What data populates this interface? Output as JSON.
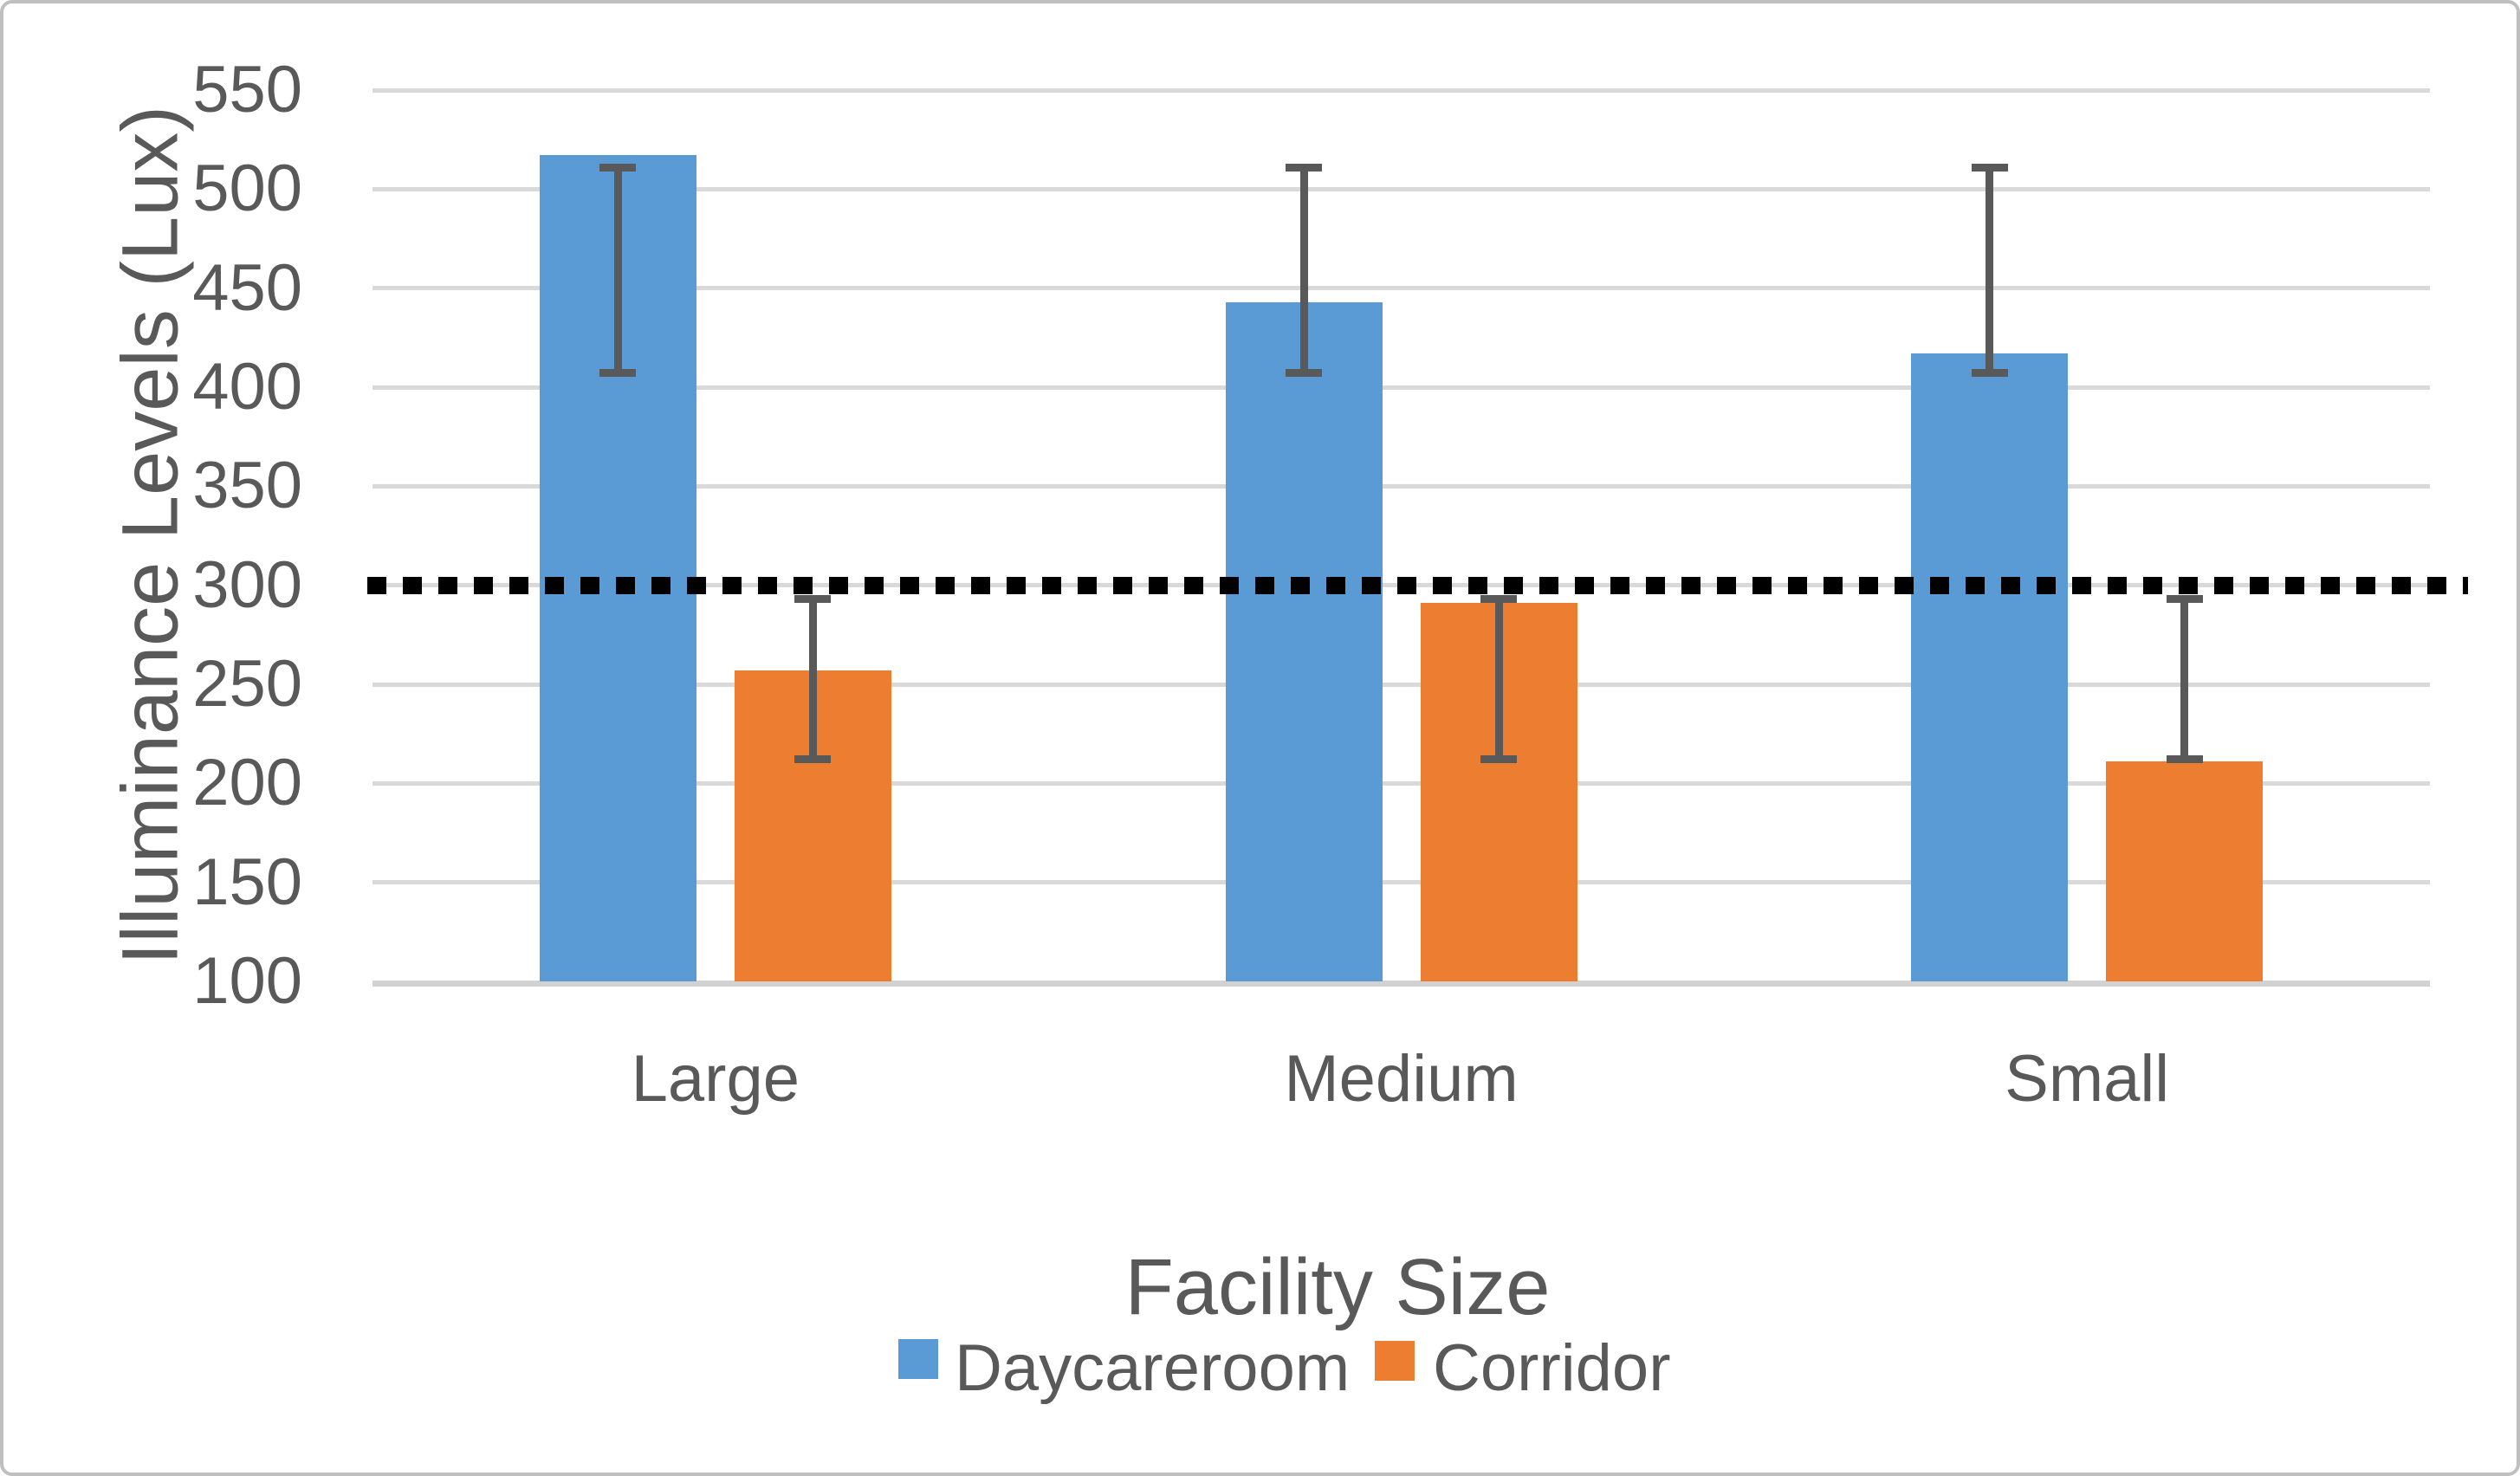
{
  "chart_data": {
    "type": "bar",
    "title": "",
    "xlabel": "Facility Size",
    "ylabel": "Illuminance Levels (Lux)",
    "categories": [
      "Large",
      "Medium",
      "Small"
    ],
    "series": [
      {
        "name": "Daycareroom",
        "color": "#5B9BD5",
        "values": [
          517,
          443,
          417
        ],
        "error_low": [
          407,
          407,
          407
        ],
        "error_high": [
          511,
          511,
          511
        ]
      },
      {
        "name": "Corridor",
        "color": "#ED7D31",
        "values": [
          257,
          291,
          211
        ],
        "error_low": [
          212,
          212,
          212
        ],
        "error_high": [
          293,
          293,
          293
        ]
      }
    ],
    "y_ticks": [
      550,
      500,
      450,
      400,
      350,
      300,
      250,
      200,
      150,
      100
    ],
    "ylim": [
      100,
      550
    ],
    "grid": true,
    "gridline_color": "#D9D9D9",
    "error_bar_color": "#595959",
    "reference_line": {
      "value": 300,
      "style": "dotted",
      "color": "#000000"
    },
    "legend_position": "bottom"
  }
}
